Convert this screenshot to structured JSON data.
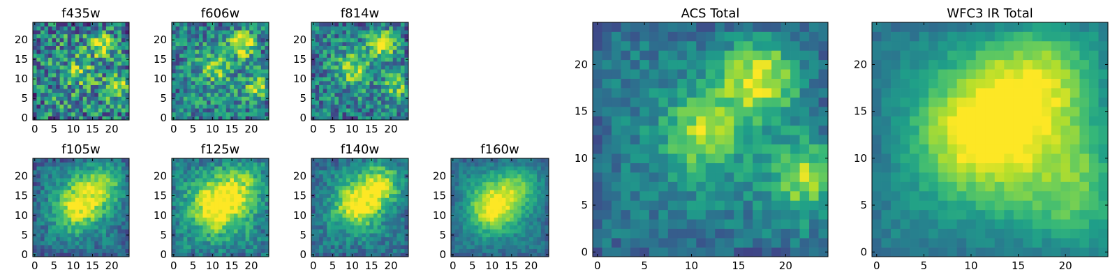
{
  "figure": {
    "background": "#ffffff"
  },
  "chart_data": [
    {
      "type": "heatmap",
      "title": "f435w",
      "xticks": [
        "0",
        "5",
        "10",
        "15",
        "20"
      ],
      "yticks": [
        "0",
        "5",
        "10",
        "15",
        "20"
      ],
      "xlim": [
        -0.5,
        24.5
      ],
      "ylim": [
        -0.5,
        24.5
      ],
      "grid": false,
      "colormap": "viridis",
      "hotspots": [
        {
          "x": 17.5,
          "y": 19,
          "level": 1.0
        },
        {
          "x": 22,
          "y": 8,
          "level": 0.75
        },
        {
          "x": 12,
          "y": 12,
          "level": 0.55
        }
      ]
    },
    {
      "type": "heatmap",
      "title": "f606w",
      "xticks": [
        "0",
        "5",
        "10",
        "15",
        "20"
      ],
      "yticks": [
        "0",
        "5",
        "10",
        "15",
        "20"
      ],
      "xlim": [
        -0.5,
        24.5
      ],
      "ylim": [
        -0.5,
        24.5
      ],
      "grid": false,
      "colormap": "viridis",
      "hotspots": [
        {
          "x": 17.5,
          "y": 19,
          "level": 1.0
        },
        {
          "x": 11,
          "y": 13,
          "level": 0.65
        },
        {
          "x": 22,
          "y": 8,
          "level": 0.7
        }
      ]
    },
    {
      "type": "heatmap",
      "title": "f814w",
      "xticks": [
        "0",
        "5",
        "10",
        "15",
        "20"
      ],
      "yticks": [
        "0",
        "5",
        "10",
        "15",
        "20"
      ],
      "xlim": [
        -0.5,
        24.5
      ],
      "ylim": [
        -0.5,
        24.5
      ],
      "grid": false,
      "colormap": "viridis",
      "hotspots": [
        {
          "x": 17.5,
          "y": 19,
          "level": 1.0
        },
        {
          "x": 10,
          "y": 12.5,
          "level": 0.8
        },
        {
          "x": 22,
          "y": 8,
          "level": 0.6
        }
      ]
    },
    {
      "type": "heatmap",
      "title": "f105w",
      "xticks": [
        "0",
        "5",
        "10",
        "15",
        "20"
      ],
      "yticks": [
        "0",
        "5",
        "10",
        "15",
        "20"
      ],
      "xlim": [
        -0.5,
        24.5
      ],
      "ylim": [
        -0.5,
        24.5
      ],
      "grid": false,
      "colormap": "viridis",
      "hotspots": [
        {
          "x": 11,
          "y": 12,
          "level": 1.0
        },
        {
          "x": 17,
          "y": 18,
          "level": 0.75
        }
      ]
    },
    {
      "type": "heatmap",
      "title": "f125w",
      "xticks": [
        "0",
        "5",
        "10",
        "15",
        "20"
      ],
      "yticks": [
        "0",
        "5",
        "10",
        "15",
        "20"
      ],
      "xlim": [
        -0.5,
        24.5
      ],
      "ylim": [
        -0.5,
        24.5
      ],
      "grid": false,
      "colormap": "viridis",
      "hotspots": [
        {
          "x": 11,
          "y": 12,
          "level": 1.0
        },
        {
          "x": 17,
          "y": 17,
          "level": 0.6
        }
      ]
    },
    {
      "type": "heatmap",
      "title": "f140w",
      "xticks": [
        "0",
        "5",
        "10",
        "15",
        "20"
      ],
      "yticks": [
        "0",
        "5",
        "10",
        "15",
        "20"
      ],
      "xlim": [
        -0.5,
        24.5
      ],
      "ylim": [
        -0.5,
        24.5
      ],
      "grid": false,
      "colormap": "viridis",
      "hotspots": [
        {
          "x": 11,
          "y": 12.5,
          "level": 1.0
        },
        {
          "x": 17,
          "y": 18,
          "level": 0.8
        }
      ]
    },
    {
      "type": "heatmap",
      "title": "f160w",
      "xticks": [
        "0",
        "5",
        "10",
        "15",
        "20"
      ],
      "yticks": [
        "0",
        "5",
        "10",
        "15",
        "20"
      ],
      "xlim": [
        -0.5,
        24.5
      ],
      "ylim": [
        -0.5,
        24.5
      ],
      "grid": false,
      "colormap": "viridis",
      "hotspots": [
        {
          "x": 10,
          "y": 12,
          "level": 1.0
        },
        {
          "x": 16,
          "y": 17,
          "level": 0.55
        }
      ]
    },
    {
      "type": "heatmap",
      "title": "ACS Total",
      "xticks": [
        "0",
        "5",
        "10",
        "15",
        "20"
      ],
      "yticks": [
        "0",
        "5",
        "10",
        "15",
        "20"
      ],
      "xlim": [
        -0.5,
        24.5
      ],
      "ylim": [
        -0.5,
        24.5
      ],
      "grid": false,
      "colormap": "viridis",
      "hotspots": [
        {
          "x": 17,
          "y": 18.5,
          "level": 1.0
        },
        {
          "x": 11,
          "y": 12.5,
          "level": 0.8
        },
        {
          "x": 22.5,
          "y": 8,
          "level": 0.85
        }
      ]
    },
    {
      "type": "heatmap",
      "title": "WFC3 IR Total",
      "xticks": [
        "0",
        "5",
        "10",
        "15",
        "20"
      ],
      "yticks": [
        "0",
        "5",
        "10",
        "15",
        "20"
      ],
      "xlim": [
        -0.5,
        24.5
      ],
      "ylim": [
        -0.5,
        24.5
      ],
      "grid": false,
      "colormap": "viridis",
      "hotspots": [
        {
          "x": 11,
          "y": 12.5,
          "level": 1.0
        },
        {
          "x": 17,
          "y": 18,
          "level": 0.75
        },
        {
          "x": 21.5,
          "y": 7,
          "level": 0.55
        }
      ]
    }
  ]
}
